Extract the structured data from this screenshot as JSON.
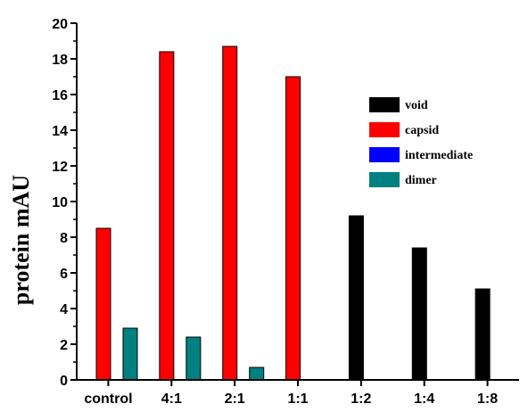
{
  "chart_data": {
    "type": "bar",
    "categories": [
      "control",
      "4:1",
      "2:1",
      "1:1",
      "1:2",
      "1:4",
      "1:8"
    ],
    "series": [
      {
        "name": "void",
        "color": "#000000",
        "values": [
          0,
          0,
          0,
          0,
          9.2,
          7.4,
          5.1
        ]
      },
      {
        "name": "capsid",
        "color": "#ff0000",
        "values": [
          8.5,
          18.4,
          18.7,
          17.0,
          0,
          0,
          0
        ]
      },
      {
        "name": "intermediate",
        "color": "#0000ff",
        "values": [
          0,
          0,
          0,
          0,
          0,
          0,
          0
        ]
      },
      {
        "name": "dimer",
        "color": "#008080",
        "values": [
          2.9,
          2.4,
          0.7,
          0,
          0,
          0,
          0
        ]
      }
    ],
    "ylabel": "protein mAU",
    "xlabel": "",
    "ylim": [
      0,
      20
    ],
    "yticks": [
      "0",
      "2",
      "4",
      "6",
      "8",
      "10",
      "12",
      "14",
      "16",
      "18",
      "20"
    ],
    "legend_position": "top-right",
    "grid": false
  }
}
